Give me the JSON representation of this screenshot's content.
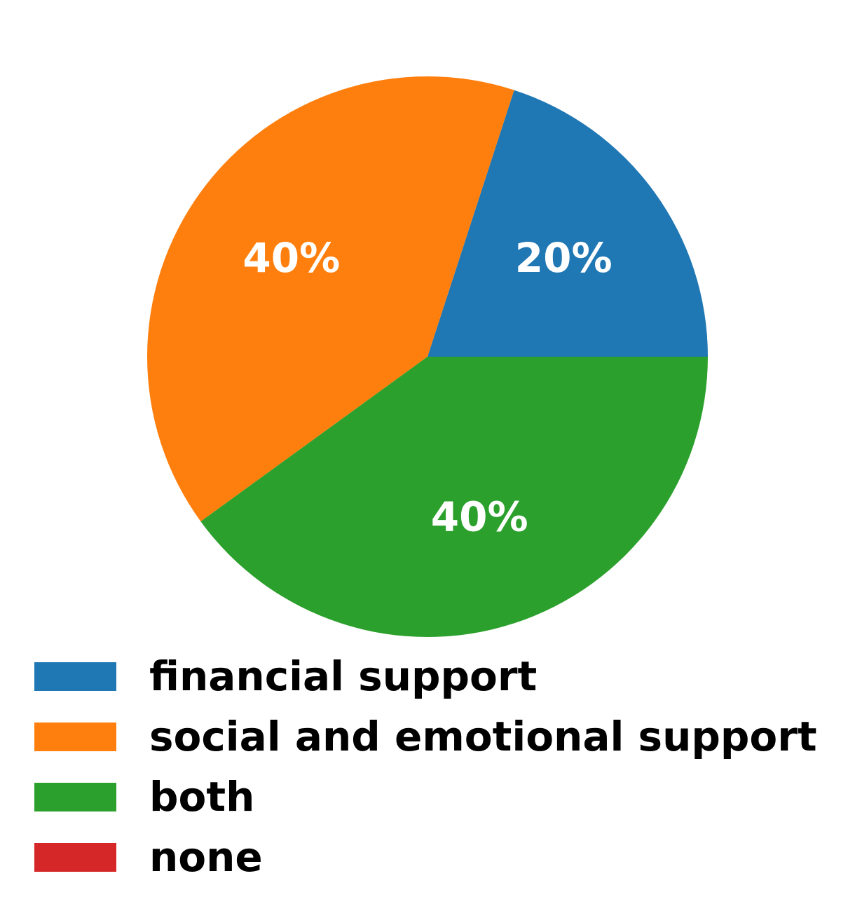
{
  "chart_data": {
    "type": "pie",
    "categories": [
      "financial support",
      "social and emotional support",
      "both",
      "none"
    ],
    "values": [
      20,
      40,
      40,
      0
    ],
    "labels": [
      "20%",
      "40%",
      "40%",
      ""
    ],
    "colors": [
      "#1f77b4",
      "#ff7f0e",
      "#2ca02c",
      "#d62728"
    ],
    "legend": "bottom-left"
  }
}
